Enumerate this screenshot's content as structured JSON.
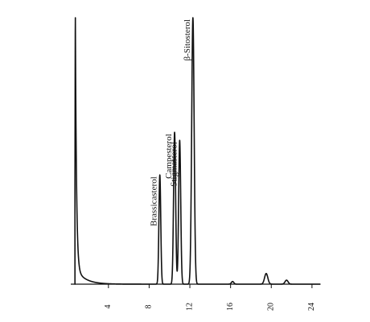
{
  "chart_data": {
    "type": "line",
    "title": "",
    "xlabel": "",
    "ylabel": "",
    "x_ticks": [
      4,
      8,
      12,
      16,
      20,
      24
    ],
    "tick_labels": [
      "4",
      "8",
      "12",
      "16",
      "20",
      "24"
    ],
    "xlim": [
      0.3,
      24.8
    ],
    "ylim": [
      0,
      100
    ],
    "grid": false,
    "legend": "none",
    "peaks": [
      {
        "name": "solvent",
        "label": "",
        "rt": 0.75,
        "height": 100,
        "width": 0.05
      },
      {
        "name": "brassicasterol",
        "label": "Brassicasterol",
        "rt": 9.05,
        "height": 41,
        "width": 0.09
      },
      {
        "name": "campesterol",
        "label": "Campesterol",
        "rt": 10.5,
        "height": 57,
        "width": 0.1
      },
      {
        "name": "stigmasterol",
        "label": "Stigmasterol",
        "rt": 11.0,
        "height": 54,
        "width": 0.1
      },
      {
        "name": "beta-sitosterol",
        "label": "β-Sitosterol",
        "rt": 12.3,
        "height": 100,
        "width": 0.12
      },
      {
        "name": "minor-1",
        "label": "",
        "rt": 16.2,
        "height": 1,
        "width": 0.12
      },
      {
        "name": "minor-2",
        "label": "",
        "rt": 19.5,
        "height": 4,
        "width": 0.16
      },
      {
        "name": "minor-3",
        "label": "",
        "rt": 21.5,
        "height": 1.5,
        "width": 0.15
      }
    ]
  },
  "colors": {
    "line": "#111111",
    "background": "#ffffff"
  }
}
